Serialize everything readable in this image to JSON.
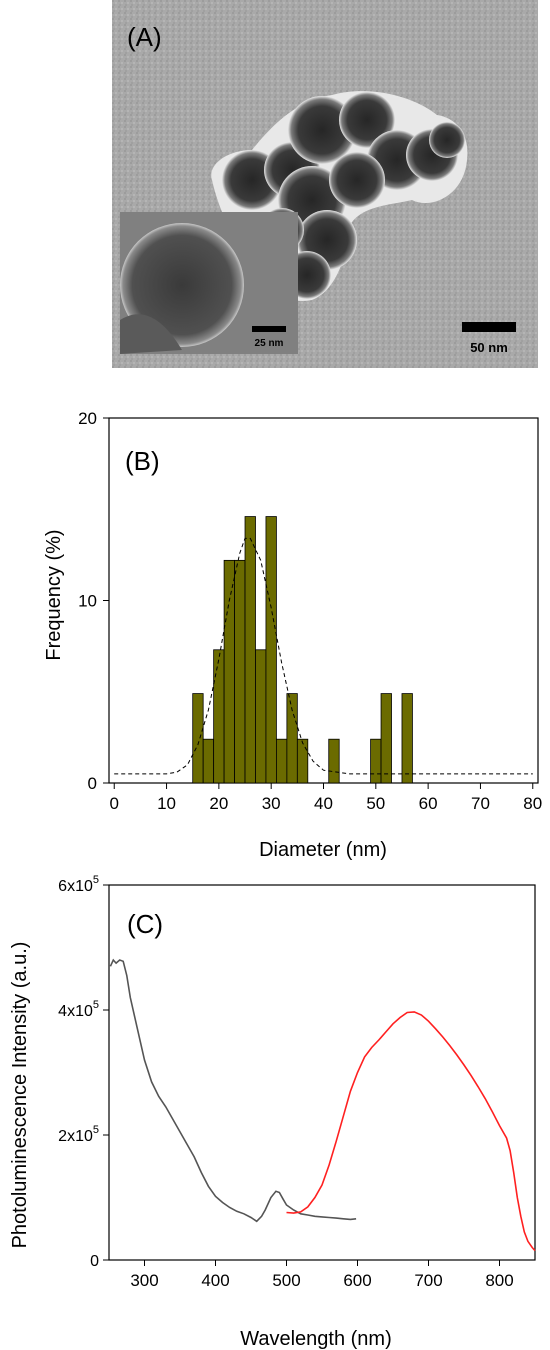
{
  "panel_a": {
    "label": "(A)",
    "scale_bar_main": "50 nm",
    "scale_bar_inset": "25 nm"
  },
  "chart_data": [
    {
      "type": "bar",
      "panel_label": "(B)",
      "xlabel": "Diameter (nm)",
      "ylabel": "Frequency (%)",
      "xlim": [
        -1,
        81
      ],
      "ylim": [
        0,
        20
      ],
      "xticks": [
        0,
        10,
        20,
        30,
        40,
        50,
        60,
        70,
        80
      ],
      "yticks": [
        0,
        10,
        20
      ],
      "bin_width": 2,
      "bar_color": "#6b6b00",
      "bins": [
        {
          "x": 16,
          "value": 4.9
        },
        {
          "x": 18,
          "value": 2.4
        },
        {
          "x": 20,
          "value": 7.3
        },
        {
          "x": 22,
          "value": 12.2
        },
        {
          "x": 24,
          "value": 12.2
        },
        {
          "x": 26,
          "value": 14.6
        },
        {
          "x": 28,
          "value": 7.3
        },
        {
          "x": 30,
          "value": 14.6
        },
        {
          "x": 32,
          "value": 2.4
        },
        {
          "x": 34,
          "value": 4.9
        },
        {
          "x": 36,
          "value": 2.4
        },
        {
          "x": 42,
          "value": 2.4
        },
        {
          "x": 50,
          "value": 2.4
        },
        {
          "x": 52,
          "value": 4.9
        },
        {
          "x": 56,
          "value": 4.9
        }
      ],
      "fit_curve": {
        "style": "dashed",
        "color": "#000000",
        "points": [
          [
            0,
            0.5
          ],
          [
            5,
            0.5
          ],
          [
            10,
            0.5
          ],
          [
            12,
            0.6
          ],
          [
            14,
            1.0
          ],
          [
            16,
            2.1
          ],
          [
            18,
            4.0
          ],
          [
            20,
            6.8
          ],
          [
            22,
            10.0
          ],
          [
            24,
            12.6
          ],
          [
            25,
            13.4
          ],
          [
            26,
            13.4
          ],
          [
            28,
            12.2
          ],
          [
            30,
            9.6
          ],
          [
            32,
            6.6
          ],
          [
            34,
            4.0
          ],
          [
            36,
            2.2
          ],
          [
            38,
            1.2
          ],
          [
            40,
            0.7
          ],
          [
            45,
            0.5
          ],
          [
            60,
            0.5
          ],
          [
            80,
            0.5
          ]
        ]
      }
    },
    {
      "type": "line",
      "panel_label": "(C)",
      "xlabel": "Wavelength (nm)",
      "ylabel": "Photoluminescence Intensity (a.u.)",
      "xlim": [
        250,
        850
      ],
      "ylim": [
        0,
        600000
      ],
      "xticks": [
        300,
        400,
        500,
        600,
        700,
        800
      ],
      "yticks": [
        {
          "value": 0,
          "mantissa": "0",
          "exp": ""
        },
        {
          "value": 200000,
          "mantissa": "2x10",
          "exp": "5"
        },
        {
          "value": 400000,
          "mantissa": "4x10",
          "exp": "5"
        },
        {
          "value": 600000,
          "mantissa": "6x10",
          "exp": "5"
        }
      ],
      "series": [
        {
          "color": "#555555",
          "points": [
            [
              252,
              470000
            ],
            [
              256,
              480000
            ],
            [
              260,
              475000
            ],
            [
              265,
              480000
            ],
            [
              270,
              478000
            ],
            [
              275,
              455000
            ],
            [
              280,
              420000
            ],
            [
              290,
              370000
            ],
            [
              300,
              320000
            ],
            [
              310,
              285000
            ],
            [
              320,
              262000
            ],
            [
              330,
              245000
            ],
            [
              340,
              225000
            ],
            [
              350,
              205000
            ],
            [
              360,
              185000
            ],
            [
              370,
              165000
            ],
            [
              380,
              140000
            ],
            [
              390,
              118000
            ],
            [
              400,
              102000
            ],
            [
              410,
              92000
            ],
            [
              420,
              84000
            ],
            [
              430,
              78000
            ],
            [
              440,
              74000
            ],
            [
              450,
              68000
            ],
            [
              458,
              62000
            ],
            [
              465,
              70000
            ],
            [
              470,
              80000
            ],
            [
              478,
              100000
            ],
            [
              485,
              110000
            ],
            [
              490,
              108000
            ],
            [
              495,
              98000
            ],
            [
              500,
              88000
            ],
            [
              510,
              80000
            ],
            [
              520,
              74000
            ],
            [
              530,
              72000
            ],
            [
              540,
              70000
            ],
            [
              550,
              69000
            ],
            [
              560,
              68000
            ],
            [
              570,
              67000
            ],
            [
              580,
              66000
            ],
            [
              590,
              65000
            ],
            [
              598,
              66000
            ]
          ]
        },
        {
          "color": "#ff2020",
          "points": [
            [
              500,
              76000
            ],
            [
              510,
              75000
            ],
            [
              520,
              77000
            ],
            [
              530,
              85000
            ],
            [
              540,
              100000
            ],
            [
              550,
              120000
            ],
            [
              560,
              152000
            ],
            [
              570,
              190000
            ],
            [
              580,
              230000
            ],
            [
              590,
              270000
            ],
            [
              600,
              300000
            ],
            [
              610,
              325000
            ],
            [
              620,
              340000
            ],
            [
              630,
              352000
            ],
            [
              640,
              365000
            ],
            [
              650,
              378000
            ],
            [
              660,
              388000
            ],
            [
              670,
              396000
            ],
            [
              680,
              397000
            ],
            [
              690,
              392000
            ],
            [
              700,
              382000
            ],
            [
              710,
              370000
            ],
            [
              720,
              357000
            ],
            [
              730,
              343000
            ],
            [
              740,
              328000
            ],
            [
              750,
              312000
            ],
            [
              760,
              295000
            ],
            [
              770,
              277000
            ],
            [
              780,
              258000
            ],
            [
              790,
              237000
            ],
            [
              800,
              215000
            ],
            [
              810,
              195000
            ],
            [
              815,
              175000
            ],
            [
              820,
              140000
            ],
            [
              825,
              100000
            ],
            [
              830,
              70000
            ],
            [
              835,
              45000
            ],
            [
              840,
              30000
            ],
            [
              846,
              20000
            ],
            [
              850,
              15000
            ]
          ]
        }
      ]
    }
  ]
}
